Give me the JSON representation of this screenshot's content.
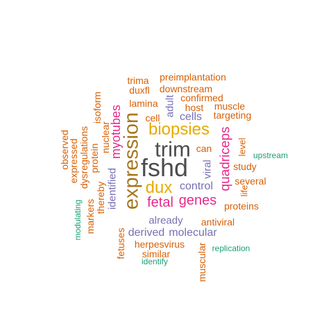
{
  "palette": {
    "orange": "#D95F02",
    "teal": "#1B9E77",
    "purple": "#7570B3",
    "magenta": "#E7298A",
    "gold": "#E6AB02",
    "olive": "#A6761D",
    "gray": "#4D4D4D"
  },
  "words": [
    {
      "text": "fshd",
      "color": "gray"
    },
    {
      "text": "trim",
      "color": "gray"
    },
    {
      "text": "expression",
      "color": "olive"
    },
    {
      "text": "biopsies",
      "color": "gold"
    },
    {
      "text": "dux",
      "color": "gold"
    },
    {
      "text": "fetal",
      "color": "magenta"
    },
    {
      "text": "genes",
      "color": "magenta"
    },
    {
      "text": "myotubes",
      "color": "magenta"
    },
    {
      "text": "quadriceps",
      "color": "magenta"
    },
    {
      "text": "control",
      "color": "purple"
    },
    {
      "text": "cells",
      "color": "purple"
    },
    {
      "text": "adult",
      "color": "purple"
    },
    {
      "text": "viral",
      "color": "purple"
    },
    {
      "text": "identified",
      "color": "purple"
    },
    {
      "text": "already",
      "color": "purple"
    },
    {
      "text": "derived",
      "color": "purple"
    },
    {
      "text": "molecular",
      "color": "purple"
    },
    {
      "text": "preimplantation",
      "color": "orange"
    },
    {
      "text": "trima",
      "color": "orange"
    },
    {
      "text": "duxfl",
      "color": "orange"
    },
    {
      "text": "downstream",
      "color": "orange"
    },
    {
      "text": "lamina",
      "color": "orange"
    },
    {
      "text": "confirmed",
      "color": "orange"
    },
    {
      "text": "host",
      "color": "orange"
    },
    {
      "text": "muscle",
      "color": "orange"
    },
    {
      "text": "targeting",
      "color": "orange"
    },
    {
      "text": "cell",
      "color": "orange"
    },
    {
      "text": "can",
      "color": "orange"
    },
    {
      "text": "level",
      "color": "orange"
    },
    {
      "text": "study",
      "color": "orange"
    },
    {
      "text": "several",
      "color": "orange"
    },
    {
      "text": "life",
      "color": "orange"
    },
    {
      "text": "proteins",
      "color": "orange"
    },
    {
      "text": "antiviral",
      "color": "orange"
    },
    {
      "text": "herpesvirus",
      "color": "orange"
    },
    {
      "text": "similar",
      "color": "orange"
    },
    {
      "text": "muscular",
      "color": "orange"
    },
    {
      "text": "fetuses",
      "color": "orange"
    },
    {
      "text": "isoform",
      "color": "orange"
    },
    {
      "text": "nuclear",
      "color": "orange"
    },
    {
      "text": "protein",
      "color": "orange"
    },
    {
      "text": "dysregulations",
      "color": "orange"
    },
    {
      "text": "expressed",
      "color": "orange"
    },
    {
      "text": "observed",
      "color": "orange"
    },
    {
      "text": "markers",
      "color": "orange"
    },
    {
      "text": "thereby",
      "color": "orange"
    },
    {
      "text": "upstream",
      "color": "teal"
    },
    {
      "text": "replication",
      "color": "teal"
    },
    {
      "text": "identify",
      "color": "teal"
    },
    {
      "text": "modulating",
      "color": "teal"
    }
  ]
}
